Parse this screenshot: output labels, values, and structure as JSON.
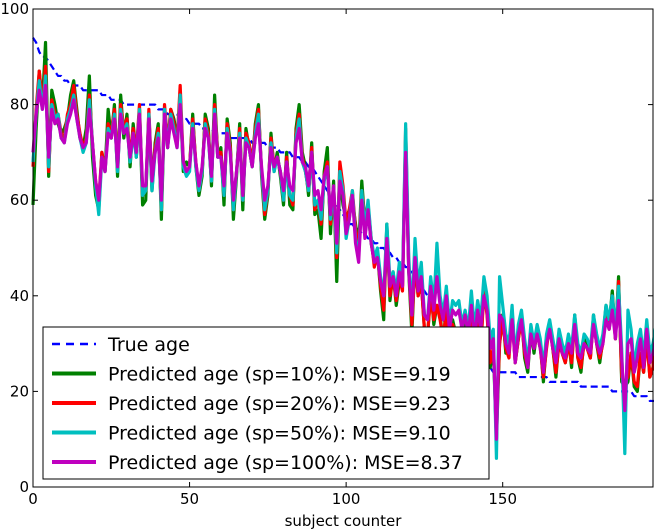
{
  "chart_data": {
    "type": "line",
    "title": "",
    "xlabel": "subject counter",
    "ylabel": "",
    "xlim": [
      0,
      198
    ],
    "ylim": [
      0,
      100
    ],
    "xticks": [
      0,
      50,
      100,
      150
    ],
    "yticks": [
      0,
      20,
      40,
      60,
      80,
      100
    ],
    "grid": false,
    "legend_position": "lower-left",
    "x_start": 0,
    "x_step": 1,
    "series": [
      {
        "name": "True age",
        "color": "#0000ff",
        "style": "dashed",
        "values": [
          94,
          93,
          91,
          90,
          90,
          89,
          88,
          87,
          86,
          86,
          85,
          85,
          84,
          84,
          84,
          84,
          83,
          83,
          83,
          83,
          83,
          83,
          82,
          82,
          82,
          81,
          81,
          81,
          81,
          80,
          80,
          80,
          80,
          80,
          80,
          80,
          80,
          80,
          80,
          80,
          79,
          79,
          79,
          78,
          78,
          78,
          78,
          77,
          77,
          77,
          76,
          76,
          76,
          76,
          75,
          75,
          75,
          75,
          74,
          74,
          74,
          74,
          74,
          73,
          73,
          73,
          73,
          73,
          73,
          73,
          72,
          72,
          72,
          72,
          72,
          71,
          71,
          71,
          71,
          70,
          70,
          70,
          70,
          69,
          69,
          69,
          68,
          68,
          67,
          67,
          66,
          65,
          64,
          63,
          62,
          61,
          60,
          59,
          58,
          57,
          56,
          55,
          55,
          54,
          54,
          53,
          53,
          52,
          52,
          51,
          51,
          50,
          50,
          49,
          49,
          48,
          48,
          47,
          47,
          46,
          46,
          45,
          44,
          43,
          42,
          41,
          40,
          39,
          38,
          37,
          36,
          35,
          34,
          33,
          32,
          31,
          30,
          29,
          28,
          27,
          27,
          26,
          26,
          25,
          25,
          25,
          25,
          24,
          24,
          24,
          24,
          24,
          24,
          24,
          24,
          23,
          23,
          23,
          23,
          23,
          23,
          23,
          23,
          23,
          23,
          22,
          22,
          22,
          22,
          22,
          22,
          22,
          22,
          22,
          22,
          21,
          21,
          21,
          21,
          21,
          21,
          21,
          21,
          21,
          21,
          20,
          20,
          20,
          20,
          20,
          20,
          20,
          19,
          19,
          19,
          19,
          19,
          18,
          18,
          18
        ]
      },
      {
        "name": "Predicted age (sp=10%): MSE=9.19",
        "color": "#008000",
        "style": "solid",
        "values": [
          59,
          75,
          87,
          80,
          93,
          65,
          83,
          80,
          76,
          74,
          75,
          77,
          82,
          85,
          79,
          73,
          71,
          75,
          86,
          69,
          61,
          58,
          70,
          66,
          79,
          73,
          80,
          65,
          82,
          73,
          78,
          67,
          76,
          69,
          79,
          59,
          60,
          78,
          62,
          72,
          76,
          56,
          79,
          71,
          79,
          77,
          73,
          81,
          66,
          68,
          67,
          78,
          67,
          61,
          65,
          78,
          75,
          63,
          82,
          69,
          71,
          59,
          77,
          72,
          56,
          65,
          76,
          58,
          75,
          71,
          67,
          76,
          80,
          65,
          56,
          61,
          74,
          66,
          70,
          65,
          59,
          70,
          59,
          58,
          75,
          80,
          70,
          67,
          61,
          72,
          57,
          58,
          52,
          66,
          71,
          53,
          64,
          43,
          65,
          59,
          56,
          58,
          60,
          55,
          50,
          64,
          55,
          58,
          51,
          47,
          49,
          41,
          35,
          55,
          39,
          45,
          38,
          43,
          42,
          73,
          45,
          32,
          48,
          40,
          43,
          33,
          31,
          42,
          34,
          38,
          36,
          30,
          38,
          28,
          35,
          32,
          33,
          28,
          34,
          30,
          38,
          26,
          35,
          28,
          43,
          37,
          25,
          29,
          10,
          30,
          36,
          28,
          28,
          37,
          26,
          31,
          36,
          27,
          24,
          33,
          28,
          33,
          30,
          22,
          30,
          34,
          29,
          23,
          31,
          28,
          26,
          31,
          25,
          36,
          27,
          24,
          31,
          29,
          27,
          36,
          30,
          26,
          31,
          38,
          34,
          41,
          31,
          44,
          22,
          21,
          22,
          28,
          21,
          20,
          28,
          24,
          32,
          23,
          25,
          35
        ]
      },
      {
        "name": "Predicted age (sp=20%): MSE=9.23",
        "color": "#ff0000",
        "style": "solid",
        "values": [
          67,
          79,
          87,
          80,
          88,
          66,
          81,
          78,
          78,
          74,
          73,
          78,
          80,
          84,
          78,
          74,
          71,
          73,
          82,
          72,
          64,
          60,
          70,
          66,
          76,
          74,
          79,
          67,
          80,
          75,
          77,
          69,
          75,
          70,
          80,
          61,
          62,
          79,
          63,
          71,
          75,
          58,
          80,
          72,
          79,
          76,
          72,
          84,
          68,
          66,
          67,
          77,
          68,
          62,
          66,
          77,
          74,
          64,
          80,
          70,
          70,
          61,
          76,
          71,
          58,
          66,
          75,
          60,
          74,
          72,
          68,
          75,
          79,
          66,
          57,
          62,
          73,
          67,
          69,
          66,
          60,
          69,
          61,
          59,
          74,
          78,
          69,
          66,
          62,
          71,
          58,
          60,
          55,
          65,
          68,
          55,
          62,
          48,
          68,
          63,
          55,
          58,
          62,
          54,
          50,
          62,
          56,
          59,
          52,
          46,
          49,
          42,
          37,
          54,
          40,
          44,
          39,
          44,
          41,
          75,
          46,
          34,
          47,
          40,
          43,
          33,
          32,
          40,
          35,
          38,
          35,
          31,
          37,
          30,
          34,
          32,
          33,
          29,
          33,
          31,
          36,
          27,
          34,
          29,
          41,
          36,
          26,
          29,
          13,
          30,
          35,
          29,
          27,
          36,
          26,
          31,
          35,
          28,
          25,
          33,
          29,
          32,
          29,
          23,
          29,
          34,
          29,
          24,
          30,
          28,
          26,
          30,
          26,
          35,
          27,
          25,
          30,
          29,
          27,
          35,
          30,
          27,
          30,
          37,
          33,
          40,
          31,
          43,
          23,
          22,
          23,
          28,
          22,
          21,
          28,
          24,
          31,
          23,
          25,
          34
        ]
      },
      {
        "name": "Predicted age (sp=50%): MSE=9.10",
        "color": "#00bfbf",
        "style": "solid",
        "values": [
          68,
          78,
          85,
          79,
          86,
          67,
          80,
          77,
          78,
          73,
          72,
          77,
          79,
          82,
          77,
          73,
          70,
          72,
          81,
          72,
          63,
          57,
          69,
          66,
          75,
          73,
          78,
          66,
          79,
          74,
          76,
          68,
          74,
          69,
          79,
          61,
          62,
          78,
          62,
          70,
          74,
          58,
          79,
          71,
          78,
          75,
          71,
          82,
          67,
          65,
          66,
          76,
          67,
          62,
          66,
          76,
          73,
          64,
          79,
          69,
          69,
          61,
          75,
          70,
          58,
          66,
          74,
          60,
          73,
          71,
          67,
          74,
          78,
          66,
          58,
          62,
          72,
          66,
          69,
          66,
          60,
          68,
          61,
          60,
          73,
          77,
          68,
          66,
          62,
          70,
          59,
          60,
          56,
          64,
          67,
          56,
          62,
          49,
          66,
          62,
          52,
          56,
          62,
          52,
          48,
          62,
          54,
          60,
          52,
          48,
          50,
          44,
          40,
          55,
          43,
          45,
          41,
          47,
          43,
          76,
          48,
          36,
          52,
          42,
          47,
          36,
          35,
          44,
          38,
          51,
          40,
          36,
          42,
          34,
          39,
          38,
          39,
          34,
          37,
          33,
          41,
          33,
          39,
          35,
          44,
          40,
          31,
          33,
          6,
          44,
          38,
          32,
          30,
          38,
          27,
          34,
          37,
          31,
          26,
          34,
          30,
          34,
          31,
          25,
          32,
          35,
          31,
          27,
          33,
          30,
          28,
          32,
          29,
          36,
          30,
          28,
          32,
          31,
          29,
          36,
          32,
          29,
          32,
          38,
          35,
          40,
          33,
          42,
          29,
          7,
          37,
          33,
          25,
          30,
          33,
          27,
          35,
          28,
          30,
          34
        ]
      },
      {
        "name": "Predicted age (sp=100%): MSE=8.37",
        "color": "#bf00bf",
        "style": "solid",
        "values": [
          70,
          78,
          83,
          79,
          84,
          69,
          79,
          76,
          77,
          73,
          72,
          76,
          78,
          81,
          77,
          73,
          71,
          72,
          79,
          72,
          64,
          60,
          69,
          66,
          74,
          73,
          77,
          67,
          78,
          74,
          75,
          69,
          74,
          70,
          78,
          63,
          63,
          77,
          64,
          70,
          73,
          60,
          78,
          71,
          77,
          74,
          71,
          80,
          68,
          66,
          67,
          75,
          68,
          63,
          67,
          75,
          73,
          65,
          78,
          69,
          69,
          63,
          74,
          70,
          60,
          66,
          73,
          61,
          72,
          71,
          67,
          73,
          76,
          67,
          60,
          63,
          71,
          67,
          69,
          66,
          62,
          68,
          63,
          62,
          72,
          75,
          68,
          67,
          63,
          70,
          61,
          62,
          58,
          65,
          67,
          57,
          63,
          51,
          64,
          61,
          53,
          56,
          61,
          51,
          47,
          60,
          52,
          58,
          51,
          47,
          48,
          43,
          40,
          52,
          42,
          44,
          40,
          45,
          42,
          70,
          45,
          36,
          48,
          41,
          44,
          36,
          35,
          42,
          37,
          44,
          38,
          35,
          40,
          33,
          37,
          36,
          37,
          33,
          36,
          32,
          38,
          31,
          37,
          33,
          40,
          37,
          29,
          31,
          10,
          36,
          35,
          30,
          28,
          35,
          26,
          32,
          35,
          29,
          25,
          32,
          29,
          32,
          29,
          24,
          30,
          33,
          29,
          26,
          31,
          28,
          27,
          30,
          28,
          34,
          28,
          27,
          30,
          29,
          28,
          34,
          30,
          28,
          30,
          35,
          33,
          37,
          31,
          39,
          27,
          16,
          30,
          31,
          24,
          27,
          31,
          25,
          33,
          26,
          28,
          31
        ]
      }
    ]
  }
}
